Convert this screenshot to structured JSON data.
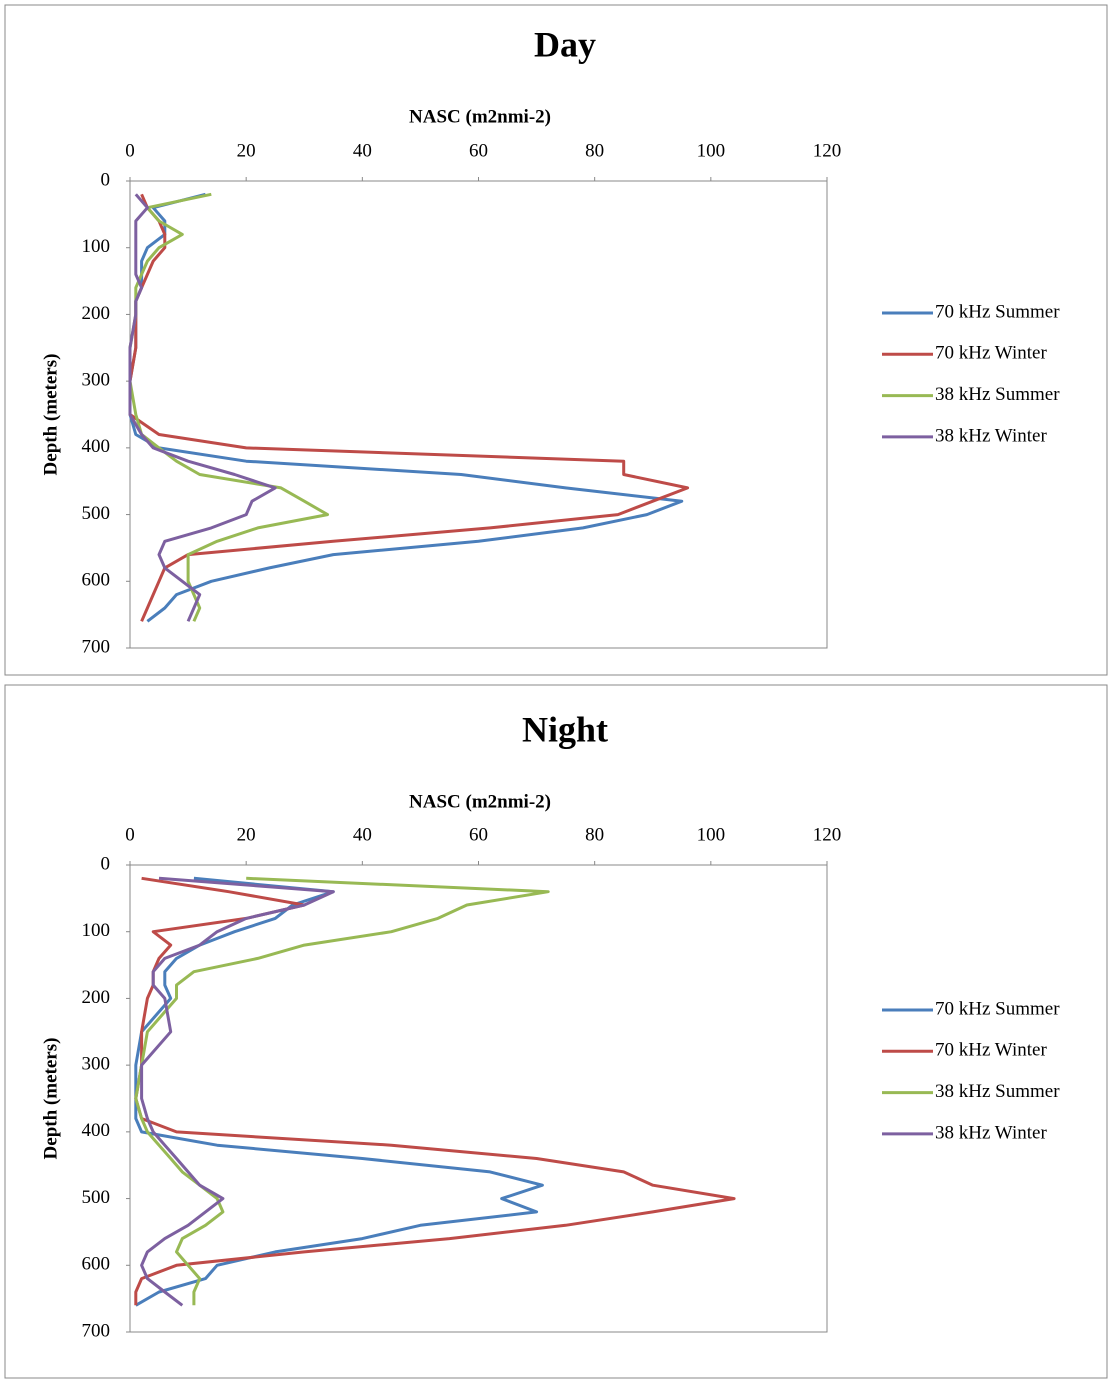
{
  "chart_data": [
    {
      "type": "line",
      "title": "Day",
      "xlabel": "NASC  (m2nmi-2)",
      "ylabel": "Depth (meters)",
      "xlim": [
        0,
        120
      ],
      "xticks": [
        0,
        20,
        40,
        60,
        80,
        100,
        120
      ],
      "x_axis_position": "top",
      "ylim": [
        0,
        700
      ],
      "yticks": [
        0,
        100,
        200,
        300,
        400,
        500,
        600,
        700
      ],
      "y_reversed": true,
      "legend": "right",
      "y": [
        20,
        40,
        60,
        80,
        100,
        120,
        140,
        160,
        180,
        200,
        250,
        300,
        350,
        380,
        400,
        420,
        440,
        460,
        480,
        500,
        520,
        540,
        560,
        580,
        600,
        620,
        640,
        660
      ],
      "series": [
        {
          "name": "70 kHz Summer",
          "color": "#4a7ebb",
          "values": [
            13,
            4,
            6,
            6,
            3,
            2,
            2,
            2,
            1,
            1,
            1,
            0,
            0,
            1,
            5,
            20,
            57,
            75,
            95,
            89,
            78,
            60,
            35,
            24,
            14,
            8,
            6,
            3
          ]
        },
        {
          "name": "70 kHz Winter",
          "color": "#be4b48",
          "values": [
            2,
            3,
            5,
            6,
            6,
            4,
            3,
            2,
            1,
            1,
            1,
            0,
            0,
            5,
            20,
            85,
            85,
            96,
            90,
            84,
            62,
            35,
            10,
            6,
            5,
            4,
            3,
            2
          ]
        },
        {
          "name": "38 kHz Summer",
          "color": "#98b954",
          "values": [
            14,
            3,
            5,
            9,
            5,
            3,
            2,
            1,
            1,
            1,
            0,
            0,
            1,
            2,
            5,
            8,
            12,
            26,
            30,
            34,
            22,
            15,
            10,
            10,
            10,
            11,
            12,
            11
          ]
        },
        {
          "name": "38 kHz Winter",
          "color": "#7d60a0",
          "values": [
            1,
            3,
            1,
            1,
            1,
            1,
            1,
            2,
            1,
            1,
            0,
            0,
            0,
            2,
            4,
            10,
            18,
            25,
            21,
            20,
            14,
            6,
            5,
            6,
            9,
            12,
            11,
            10
          ]
        }
      ]
    },
    {
      "type": "line",
      "title": "Night",
      "xlabel": "NASC  (m2nmi-2)",
      "ylabel": "Depth (meters)",
      "xlim": [
        0,
        120
      ],
      "xticks": [
        0,
        20,
        40,
        60,
        80,
        100,
        120
      ],
      "x_axis_position": "top",
      "ylim": [
        0,
        700
      ],
      "yticks": [
        0,
        100,
        200,
        300,
        400,
        500,
        600,
        700
      ],
      "y_reversed": true,
      "legend": "right",
      "y": [
        20,
        40,
        60,
        80,
        100,
        120,
        140,
        160,
        180,
        200,
        250,
        300,
        350,
        380,
        400,
        420,
        440,
        460,
        480,
        500,
        520,
        540,
        560,
        580,
        600,
        620,
        640,
        660
      ],
      "series": [
        {
          "name": "70 kHz Summer",
          "color": "#4a7ebb",
          "values": [
            11,
            35,
            28,
            25,
            18,
            12,
            8,
            6,
            6,
            7,
            2,
            1,
            1,
            1,
            2,
            15,
            40,
            62,
            71,
            64,
            70,
            50,
            40,
            25,
            15,
            13,
            5,
            1
          ]
        },
        {
          "name": "70 kHz Winter",
          "color": "#be4b48",
          "values": [
            2,
            17,
            30,
            20,
            4,
            7,
            5,
            4,
            4,
            3,
            2,
            2,
            1,
            2,
            8,
            45,
            70,
            85,
            90,
            104,
            90,
            75,
            55,
            30,
            8,
            2,
            1,
            1
          ]
        },
        {
          "name": "38 kHz Summer",
          "color": "#98b954",
          "values": [
            20,
            72,
            58,
            53,
            45,
            30,
            22,
            11,
            8,
            8,
            3,
            2,
            1,
            2,
            3,
            5,
            7,
            9,
            12,
            15,
            16,
            13,
            9,
            8,
            10,
            12,
            11,
            11
          ]
        },
        {
          "name": "38 kHz Winter",
          "color": "#7d60a0",
          "values": [
            5,
            35,
            30,
            20,
            15,
            12,
            6,
            4,
            4,
            6,
            7,
            2,
            2,
            3,
            4,
            6,
            8,
            10,
            12,
            16,
            13,
            10,
            6,
            3,
            2,
            3,
            6,
            9
          ]
        }
      ]
    }
  ]
}
